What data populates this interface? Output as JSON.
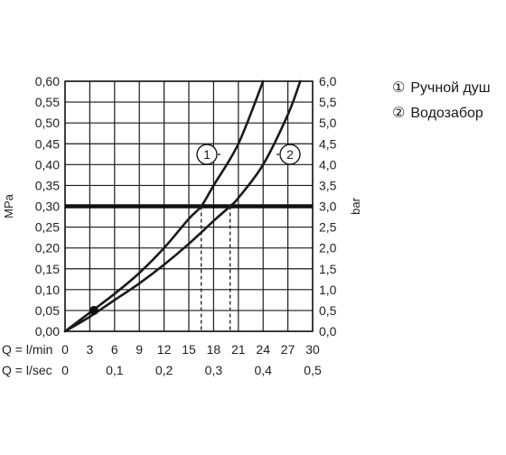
{
  "chart_data": {
    "type": "line",
    "x_rows": [
      {
        "label": "Q = l/min",
        "ticks": [
          "0",
          "3",
          "6",
          "9",
          "12",
          "15",
          "18",
          "21",
          "24",
          "27",
          "30"
        ]
      },
      {
        "label": "Q = l/sec",
        "ticks": [
          "0",
          "0,1",
          "0,2",
          "0,3",
          "0,4",
          "0,5"
        ]
      }
    ],
    "xlim": [
      0,
      30
    ],
    "y_left": {
      "label": "MPa",
      "lim": [
        0,
        0.6
      ],
      "ticks": [
        "0,00",
        "0,05",
        "0,10",
        "0,15",
        "0,20",
        "0,25",
        "0,30",
        "0,35",
        "0,40",
        "0,45",
        "0,50",
        "0,55",
        "0,60"
      ]
    },
    "y_right": {
      "label": "bar",
      "lim": [
        0,
        6
      ],
      "ticks": [
        "0,0",
        "0,5",
        "1,0",
        "1,5",
        "2,0",
        "2,5",
        "3,0",
        "3,5",
        "4,0",
        "4,5",
        "5,0",
        "5,5",
        "6,0"
      ]
    },
    "grid": true,
    "series": [
      {
        "name": "Ручной душ",
        "marker": "1",
        "points": [
          [
            0,
            0
          ],
          [
            3,
            0.045
          ],
          [
            6,
            0.09
          ],
          [
            9,
            0.14
          ],
          [
            12,
            0.2
          ],
          [
            15,
            0.27
          ],
          [
            16.5,
            0.3
          ],
          [
            18,
            0.35
          ],
          [
            21,
            0.45
          ],
          [
            24,
            0.6
          ]
        ]
      },
      {
        "name": "Водозабор",
        "marker": "2",
        "points": [
          [
            0,
            0
          ],
          [
            3,
            0.035
          ],
          [
            6,
            0.075
          ],
          [
            9,
            0.115
          ],
          [
            12,
            0.16
          ],
          [
            15,
            0.21
          ],
          [
            18,
            0.265
          ],
          [
            20,
            0.3
          ],
          [
            21,
            0.32
          ],
          [
            24,
            0.4
          ],
          [
            27,
            0.52
          ],
          [
            28.5,
            0.6
          ]
        ]
      }
    ],
    "reference_line_y": 0.3,
    "drop_lines_x": [
      16.5,
      20
    ],
    "start_point": [
      3.5,
      0.05
    ],
    "legend": {
      "position": "right",
      "items": [
        {
          "symbol": "①",
          "label": "Ручной душ"
        },
        {
          "symbol": "②",
          "label": "Водозабор"
        }
      ]
    }
  }
}
